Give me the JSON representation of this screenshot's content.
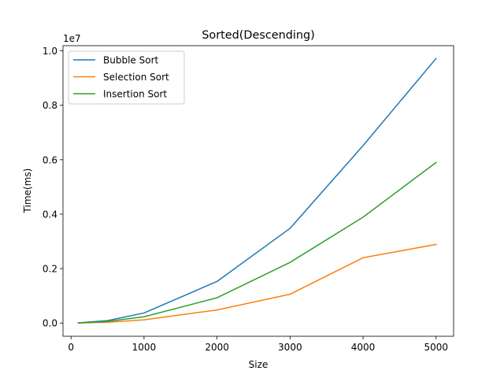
{
  "chart_data": {
    "type": "line",
    "title": "Sorted(Descending)",
    "xlabel": "Size",
    "ylabel": "Time(ms)",
    "y_offset_label": "1e7",
    "xlim": [
      -110,
      5240
    ],
    "ylim": [
      -0.485,
      10.19
    ],
    "xticks": [
      0,
      1000,
      2000,
      3000,
      4000,
      5000
    ],
    "xtick_labels": [
      "0",
      "1000",
      "2000",
      "3000",
      "4000",
      "5000"
    ],
    "yticks": [
      0.0,
      2.0,
      4.0,
      6.0,
      8.0,
      10.0
    ],
    "ytick_labels": [
      "0.0",
      "0.2",
      "0.4",
      "0.6",
      "0.8",
      "1.0"
    ],
    "grid": false,
    "legend_position": "upper left",
    "x": [
      100,
      500,
      1000,
      2000,
      3000,
      4000,
      5000
    ],
    "series": [
      {
        "name": "Bubble Sort",
        "color": "#1f77b4",
        "values": [
          0.005,
          0.09,
          0.37,
          1.53,
          3.48,
          6.52,
          9.72
        ]
      },
      {
        "name": "Selection Sort",
        "color": "#ff7f0e",
        "values": [
          0.002,
          0.03,
          0.12,
          0.48,
          1.06,
          2.4,
          2.89
        ]
      },
      {
        "name": "Insertion Sort",
        "color": "#2ca02c",
        "values": [
          0.003,
          0.06,
          0.23,
          0.93,
          2.23,
          3.89,
          5.9
        ]
      }
    ]
  }
}
